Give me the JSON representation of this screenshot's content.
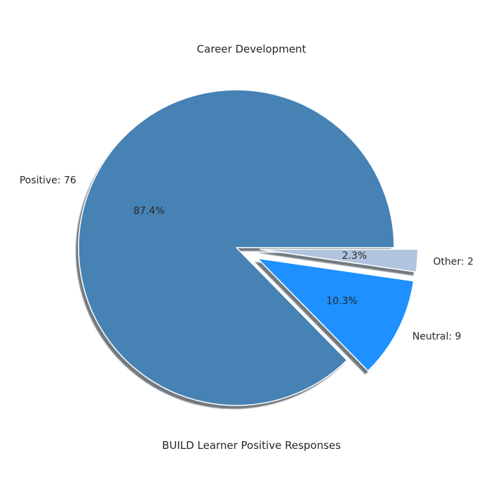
{
  "chart_data": {
    "type": "pie",
    "title": "Career Development",
    "xlabel": "BUILD Learner Positive Responses",
    "slices": [
      {
        "label": "Positive: 76",
        "value": 76,
        "percent": "87.4%",
        "color": "#4682b4",
        "exploded": false
      },
      {
        "label": "Neutral: 9",
        "value": 9,
        "percent": "10.3%",
        "color": "#1e90ff",
        "exploded": true
      },
      {
        "label": "Other: 2",
        "value": 2,
        "percent": "2.3%",
        "color": "#b0c4de",
        "exploded": true
      }
    ],
    "shadow": true,
    "start_angle": 0,
    "direction": "counterclockwise"
  }
}
